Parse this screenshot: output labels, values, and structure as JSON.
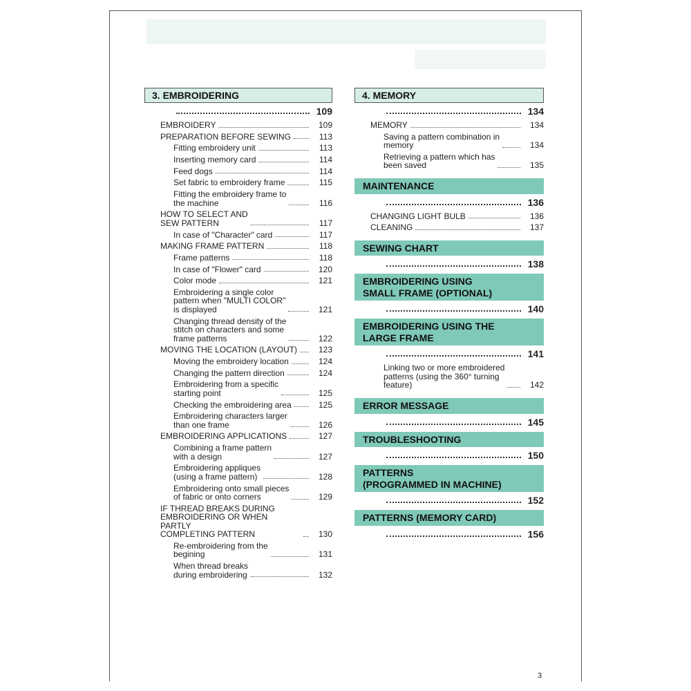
{
  "page_number": "3",
  "left": [
    {
      "type": "chapter",
      "title": "3. EMBROIDERING",
      "page": "109",
      "entries": [
        {
          "text": "EMBROIDERY",
          "page": "109",
          "level": 0
        },
        {
          "text": "PREPARATION BEFORE SEWING",
          "page": "113",
          "level": 0
        },
        {
          "text": "Fitting embroidery unit",
          "page": "113",
          "level": 1
        },
        {
          "text": "Inserting memory card",
          "page": "114",
          "level": 1
        },
        {
          "text": "Feed dogs",
          "page": "114",
          "level": 1
        },
        {
          "text": "Set fabric to embroidery frame",
          "page": "115",
          "level": 1
        },
        {
          "text": "Fitting the embroidery frame to\nthe machine",
          "page": "116",
          "level": 1
        },
        {
          "text": "HOW TO SELECT AND\nSEW PATTERN",
          "page": "117",
          "level": 0
        },
        {
          "text": "In case of \"Character\" card",
          "page": "117",
          "level": 1
        },
        {
          "text": "MAKING FRAME PATTERN",
          "page": "118",
          "level": 0
        },
        {
          "text": "Frame patterns",
          "page": "118",
          "level": 1
        },
        {
          "text": "In case of \"Flower\" card",
          "page": "120",
          "level": 1
        },
        {
          "text": "Color mode",
          "page": "121",
          "level": 1
        },
        {
          "text": "Embroidering a single color\npattern when \"MULTI COLOR\"\nis displayed",
          "page": "121",
          "level": 1
        },
        {
          "text": "Changing thread density of the\nstitch on characters and some\nframe patterns",
          "page": "122",
          "level": 1
        },
        {
          "text": "MOVING THE LOCATION (LAYOUT)",
          "page": "123",
          "level": 0
        },
        {
          "text": "Moving the embroidery location",
          "page": "124",
          "level": 1
        },
        {
          "text": "Changing the pattern direction",
          "page": "124",
          "level": 1
        },
        {
          "text": "Embroidering from a specific\nstarting point",
          "page": "125",
          "level": 1
        },
        {
          "text": "Checking the embroidering area",
          "page": "125",
          "level": 1
        },
        {
          "text": "Embroidering characters larger\nthan one frame",
          "page": "126",
          "level": 1
        },
        {
          "text": "EMBROIDERING APPLICATIONS",
          "page": "127",
          "level": 0
        },
        {
          "text": "Combining a frame pattern\nwith a design",
          "page": "127",
          "level": 1
        },
        {
          "text": "Embroidering appliques\n(using a frame pattern)",
          "page": "128",
          "level": 1
        },
        {
          "text": "Embroidering onto small pieces\nof fabric or onto corners",
          "page": "129",
          "level": 1
        },
        {
          "text": "IF THREAD BREAKS DURING\nEMBROIDERING OR WHEN PARTLY\nCOMPLETING PATTERN",
          "page": "130",
          "level": 0
        },
        {
          "text": "Re-embroidering from the\nbegining",
          "page": "131",
          "level": 1
        },
        {
          "text": "When thread breaks\nduring embroidering",
          "page": "132",
          "level": 1
        }
      ]
    }
  ],
  "right": [
    {
      "type": "chapter",
      "title": "4. MEMORY",
      "page": "134",
      "entries": [
        {
          "text": "MEMORY",
          "page": "134",
          "level": 0
        },
        {
          "text": "Saving a pattern combination in\nmemory",
          "page": "134",
          "level": 1
        },
        {
          "text": "Retrieving a pattern which has\nbeen saved",
          "page": "135",
          "level": 1
        }
      ]
    },
    {
      "type": "section",
      "title": "MAINTENANCE",
      "page": "136",
      "entries": [
        {
          "text": "CHANGING LIGHT BULB",
          "page": "136",
          "level": 0
        },
        {
          "text": "CLEANING",
          "page": "137",
          "level": 0
        }
      ]
    },
    {
      "type": "section",
      "title": "SEWING CHART",
      "page": "138",
      "entries": []
    },
    {
      "type": "section",
      "title": "EMBROIDERING USING\nSMALL FRAME (OPTIONAL)",
      "page": "140",
      "entries": []
    },
    {
      "type": "section",
      "title": "EMBROIDERING USING THE\nLARGE FRAME",
      "page": "141",
      "entries": [
        {
          "text": "Linking two or more embroidered\npatterns (using the 360° turning\nfeature)",
          "page": "142",
          "level": 1
        }
      ]
    },
    {
      "type": "section",
      "title": "ERROR MESSAGE",
      "page": "145",
      "entries": []
    },
    {
      "type": "section",
      "title": "TROUBLESHOOTING",
      "page": "150",
      "entries": []
    },
    {
      "type": "section",
      "title": "PATTERNS\n(PROGRAMMED IN MACHINE)",
      "page": "152",
      "entries": []
    },
    {
      "type": "section",
      "title": "PATTERNS (MEMORY CARD)",
      "page": "156",
      "entries": []
    }
  ],
  "colors": {
    "chapter_bg": "#d6ede8",
    "section_bg": "#7fc9b9"
  }
}
